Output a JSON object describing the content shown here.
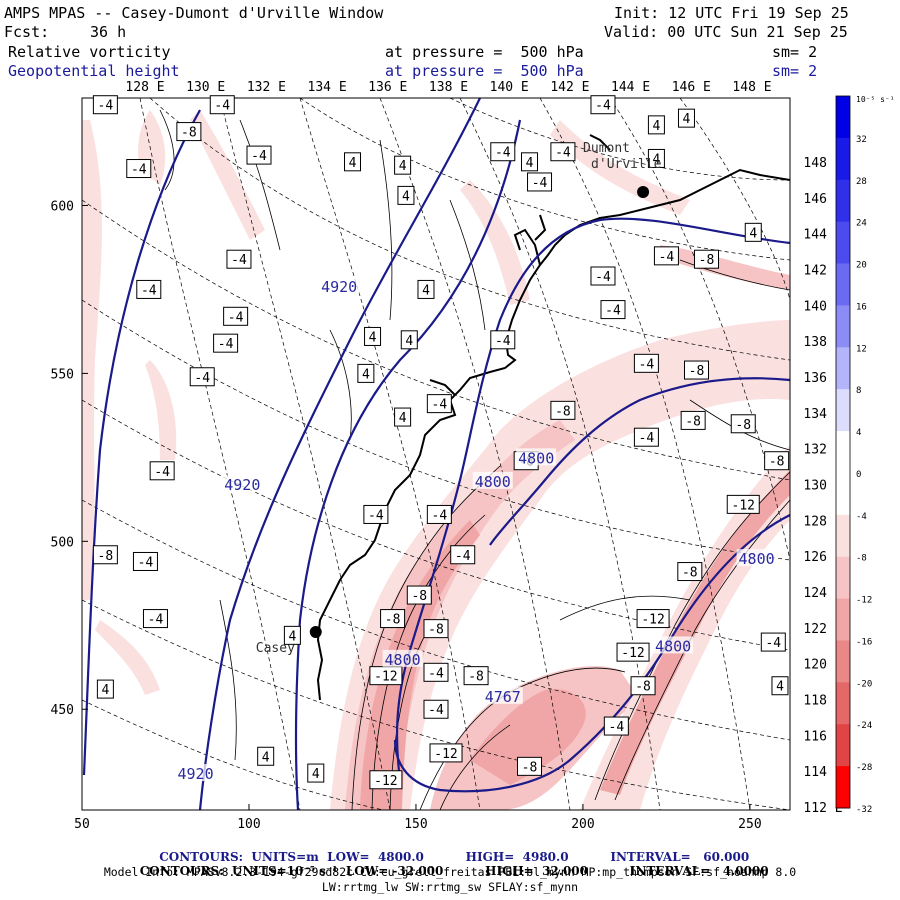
{
  "header": {
    "title": "AMPS MPAS -- Casey-Dumont d'Urville Window",
    "fcst_label": "Fcst:",
    "fcst_value": "36 h",
    "init": "Init: 12 UTC Fri 19 Sep 25",
    "valid": "Valid: 00 UTC Sun 21 Sep 25",
    "field1": "Relative vorticity",
    "field2": "Geopotential height",
    "pressure1": "at pressure =  500 hPa",
    "pressure2": "at pressure =  500 hPa",
    "sm1": "sm= 2",
    "sm2": "sm= 2"
  },
  "chart_data": {
    "type": "contour-map",
    "xlim": [
      50,
      262
    ],
    "ylim": [
      420,
      632
    ],
    "x_ticks": [
      50,
      100,
      150,
      200,
      250
    ],
    "y_ticks": [
      450,
      500,
      550,
      600
    ],
    "top_lon_labels": [
      "128 E",
      "130 E",
      "132 E",
      "134 E",
      "136 E",
      "138 E",
      "140 E",
      "142 E",
      "144 E",
      "146 E",
      "148 E"
    ],
    "right_lon_labels": [
      "112 E",
      "114 E",
      "116 E",
      "118 E",
      "120 E",
      "122 E",
      "124 E",
      "126 E",
      "128 E",
      "130 E",
      "132 E",
      "134 E",
      "136 E",
      "138 E",
      "140 E",
      "142 E",
      "144 E",
      "146 E",
      "148 E"
    ],
    "colorbar": {
      "unit": "10⁻⁵ s⁻¹",
      "levels": [
        32,
        28,
        24,
        20,
        16,
        12,
        8,
        4,
        0,
        -4,
        -8,
        -12,
        -16,
        -20,
        -24,
        -28,
        -32
      ],
      "colors": [
        "#0000e6",
        "#1a1ae8",
        "#3030ea",
        "#4b4bee",
        "#6a6af2",
        "#8c8cf6",
        "#b4b4fa",
        "#dcdcfd",
        "#ffffff",
        "#ffffff",
        "#fbe0e0",
        "#f6c4c4",
        "#f0a6a6",
        "#ea8888",
        "#e46868",
        "#e04444",
        "#ff0000"
      ]
    },
    "height_contours": {
      "units": "m",
      "low": 4800,
      "high": 4980,
      "interval": 60,
      "labels": [
        {
          "text": "4920",
          "x": 127,
          "y": 576
        },
        {
          "text": "4920",
          "x": 98,
          "y": 517
        },
        {
          "text": "4920",
          "x": 84,
          "y": 431
        },
        {
          "text": "4800",
          "x": 186,
          "y": 525
        },
        {
          "text": "4800",
          "x": 173,
          "y": 518
        },
        {
          "text": "4800",
          "x": 252,
          "y": 495
        },
        {
          "text": "4800",
          "x": 227,
          "y": 469
        },
        {
          "text": "4800",
          "x": 146,
          "y": 465
        },
        {
          "text": "4767",
          "x": 176,
          "y": 454
        }
      ]
    },
    "vorticity_contours": {
      "units": "10⁻⁵ s⁻¹",
      "low": -32,
      "high": 32,
      "interval": 4,
      "labels": [
        {
          "text": "-4",
          "x": 57,
          "y": 630
        },
        {
          "text": "-4",
          "x": 92,
          "y": 630
        },
        {
          "text": "-8",
          "x": 82,
          "y": 622
        },
        {
          "text": "-4",
          "x": 103,
          "y": 615
        },
        {
          "text": "-4",
          "x": 67,
          "y": 611
        },
        {
          "text": "4",
          "x": 131,
          "y": 613
        },
        {
          "text": "4",
          "x": 146,
          "y": 612
        },
        {
          "text": "4",
          "x": 147,
          "y": 603
        },
        {
          "text": "-4",
          "x": 176,
          "y": 616
        },
        {
          "text": "-4",
          "x": 194,
          "y": 616
        },
        {
          "text": "4",
          "x": 184,
          "y": 613
        },
        {
          "text": "-4",
          "x": 187,
          "y": 607
        },
        {
          "text": "-4",
          "x": 206,
          "y": 630
        },
        {
          "text": "4",
          "x": 222,
          "y": 624
        },
        {
          "text": "4",
          "x": 231,
          "y": 626
        },
        {
          "text": "4",
          "x": 222,
          "y": 614
        },
        {
          "text": "4",
          "x": 251,
          "y": 592
        },
        {
          "text": "-4",
          "x": 225,
          "y": 585
        },
        {
          "text": "-8",
          "x": 237,
          "y": 584
        },
        {
          "text": "-4",
          "x": 97,
          "y": 584
        },
        {
          "text": "-4",
          "x": 70,
          "y": 575
        },
        {
          "text": "-4",
          "x": 96,
          "y": 567
        },
        {
          "text": "-4",
          "x": 93,
          "y": 559
        },
        {
          "text": "-4",
          "x": 86,
          "y": 549
        },
        {
          "text": "4",
          "x": 153,
          "y": 575
        },
        {
          "text": "-4",
          "x": 206,
          "y": 579
        },
        {
          "text": "-4",
          "x": 209,
          "y": 569
        },
        {
          "text": "4",
          "x": 137,
          "y": 561
        },
        {
          "text": "4",
          "x": 148,
          "y": 560
        },
        {
          "text": "4",
          "x": 135,
          "y": 550
        },
        {
          "text": "-4",
          "x": 176,
          "y": 560
        },
        {
          "text": "-4",
          "x": 219,
          "y": 553
        },
        {
          "text": "-8",
          "x": 234,
          "y": 551
        },
        {
          "text": "-4",
          "x": 157,
          "y": 541
        },
        {
          "text": "4",
          "x": 146,
          "y": 537
        },
        {
          "text": "-8",
          "x": 194,
          "y": 539
        },
        {
          "text": "-8",
          "x": 233,
          "y": 536
        },
        {
          "text": "-8",
          "x": 248,
          "y": 535
        },
        {
          "text": "-4",
          "x": 219,
          "y": 531
        },
        {
          "text": "-8",
          "x": 183,
          "y": 524
        },
        {
          "text": "-8",
          "x": 258,
          "y": 524
        },
        {
          "text": "-4",
          "x": 74,
          "y": 521
        },
        {
          "text": "-12",
          "x": 248,
          "y": 511
        },
        {
          "text": "-4",
          "x": 138,
          "y": 508
        },
        {
          "text": "-4",
          "x": 157,
          "y": 508
        },
        {
          "text": "-4",
          "x": 164,
          "y": 496
        },
        {
          "text": "-8",
          "x": 57,
          "y": 496
        },
        {
          "text": "-4",
          "x": 69,
          "y": 494
        },
        {
          "text": "-8",
          "x": 232,
          "y": 491
        },
        {
          "text": "-8",
          "x": 151,
          "y": 484
        },
        {
          "text": "-4",
          "x": 72,
          "y": 477
        },
        {
          "text": "-8",
          "x": 143,
          "y": 477
        },
        {
          "text": "-8",
          "x": 156,
          "y": 474
        },
        {
          "text": "-12",
          "x": 221,
          "y": 477
        },
        {
          "text": "4",
          "x": 113,
          "y": 472
        },
        {
          "text": "-12",
          "x": 215,
          "y": 467
        },
        {
          "text": "-4",
          "x": 257,
          "y": 470
        },
        {
          "text": "-12",
          "x": 141,
          "y": 460
        },
        {
          "text": "-4",
          "x": 156,
          "y": 461
        },
        {
          "text": "-8",
          "x": 168,
          "y": 460
        },
        {
          "text": "-8",
          "x": 218,
          "y": 457
        },
        {
          "text": "4",
          "x": 57,
          "y": 456
        },
        {
          "text": "4",
          "x": 259,
          "y": 457
        },
        {
          "text": "-4",
          "x": 156,
          "y": 450
        },
        {
          "text": "-4",
          "x": 210,
          "y": 445
        },
        {
          "text": "-12",
          "x": 159,
          "y": 437
        },
        {
          "text": "4",
          "x": 105,
          "y": 436
        },
        {
          "text": "-8",
          "x": 184,
          "y": 433
        },
        {
          "text": "-12",
          "x": 141,
          "y": 429
        },
        {
          "text": "4",
          "x": 120,
          "y": 431
        }
      ]
    },
    "stations": [
      {
        "name": "Casey",
        "x": 120,
        "y": 473
      },
      {
        "name": "Dumont\nd'Urville",
        "x": 218,
        "y": 604
      }
    ]
  },
  "footer": {
    "line1_a": "CONTOURS:  UNITS=m  LOW=  4800.0",
    "line1_b": "HIGH=  4980.0",
    "line1_c": "INTERVAL=   60.000",
    "line2_a": "CONTOURS:  UNITS=10⁻⁵ s⁻¹  LOW= -32.000",
    "line2_b": "HIGH=  32.000",
    "line2_c": "INTERVAL=   4.0000",
    "model_info": "Model Info: MPASv8.2.3-194-gf29cd82c CU:cu_grell_freitas PBL:bl_mynn MP:mp_thompson SF:sf_noahmp 8.0",
    "model_info2": "LW:rrtmg_lw SW:rrtmg_sw SFLAY:sf_mynn"
  }
}
